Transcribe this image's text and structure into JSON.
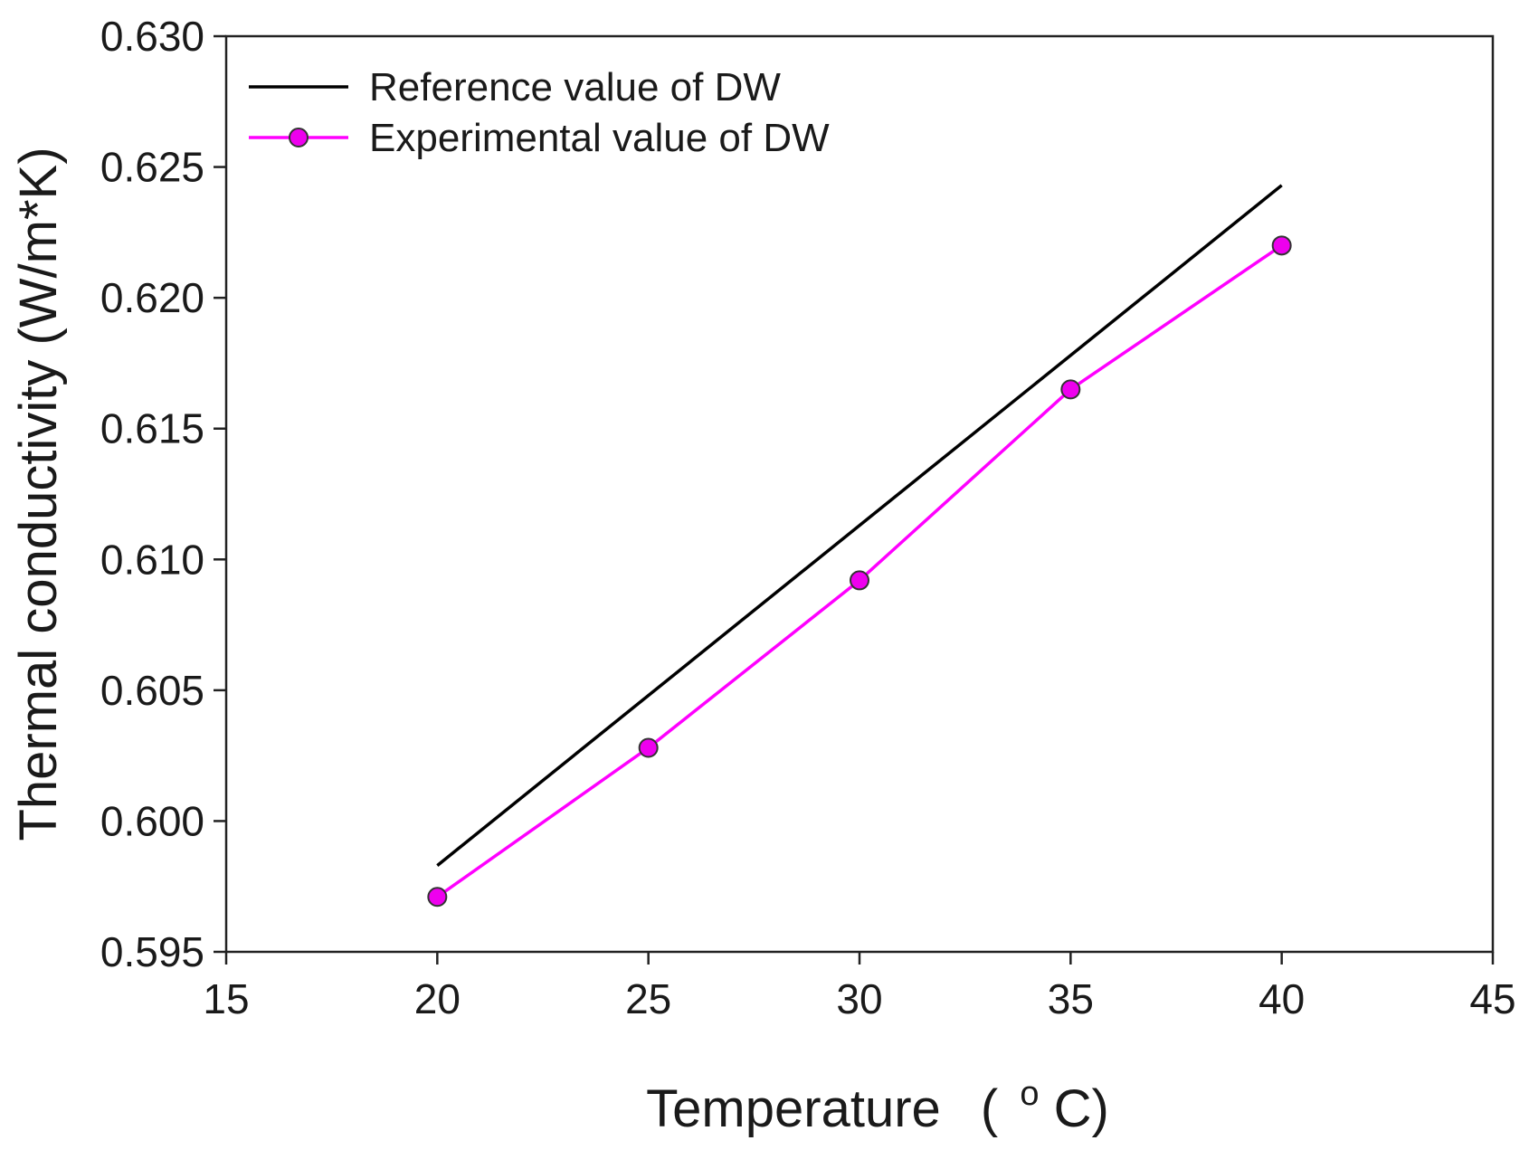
{
  "chart_data": {
    "type": "line",
    "title": "",
    "xlabel": "Temperature",
    "xlabel_unit_prefix": "(",
    "xlabel_unit_super": "o",
    "xlabel_unit_main": "C)",
    "ylabel": "Thermal conductivity  (W/m*K)",
    "xlim": [
      15,
      45
    ],
    "ylim": [
      0.595,
      0.63
    ],
    "x_ticks": [
      15,
      20,
      25,
      30,
      35,
      40,
      45
    ],
    "y_ticks": [
      0.595,
      0.6,
      0.605,
      0.61,
      0.615,
      0.62,
      0.625,
      0.63
    ],
    "x_tick_labels": [
      "15",
      "20",
      "25",
      "30",
      "35",
      "40",
      "45"
    ],
    "y_tick_labels": [
      "0.595",
      "0.600",
      "0.605",
      "0.610",
      "0.615",
      "0.620",
      "0.625",
      "0.630"
    ],
    "grid": false,
    "legend_position": "top-left",
    "series": [
      {
        "name": "Reference value of DW",
        "color": "#000000",
        "marker": "none",
        "x": [
          20,
          40
        ],
        "values": [
          0.5983,
          0.6243
        ]
      },
      {
        "name": "Experimental value of DW",
        "color": "#ff00ff",
        "marker_fill": "#ee00ee",
        "marker_stroke": "#333333",
        "marker": "circle",
        "x": [
          20,
          25,
          30,
          35,
          40
        ],
        "values": [
          0.5971,
          0.6028,
          0.6092,
          0.6165,
          0.622
        ]
      }
    ]
  }
}
